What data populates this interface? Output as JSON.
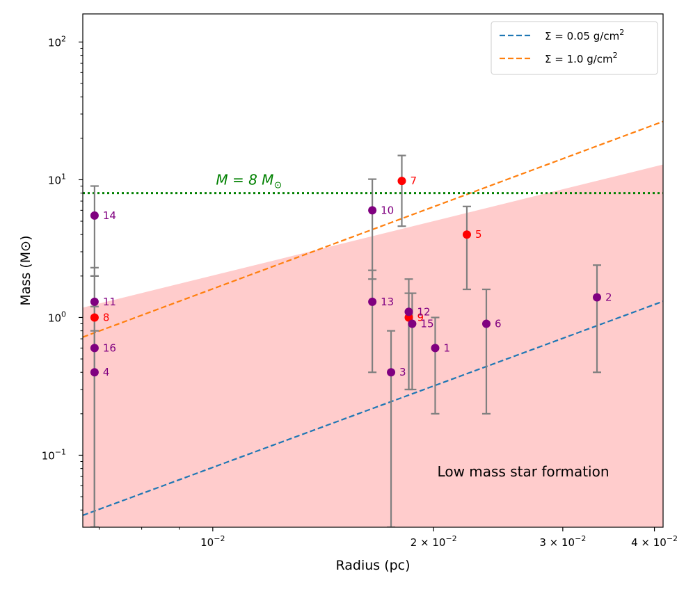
{
  "chart_data": {
    "type": "scatter",
    "xlabel": "Radius (pc)",
    "ylabel": "Mass (M⊙)",
    "x_scale": "log",
    "y_scale": "log",
    "xlim": [
      0.00665,
      0.0411
    ],
    "ylim": [
      0.03,
      160
    ],
    "x_ticks": [
      {
        "value": 0.01,
        "base": "10",
        "exp": "−2"
      },
      {
        "value": 0.02,
        "base": "2 × 10",
        "exp": "−2"
      },
      {
        "value": 0.03,
        "base": "3 × 10",
        "exp": "−2"
      },
      {
        "value": 0.04,
        "base": "4 × 10",
        "exp": "−2"
      }
    ],
    "y_ticks": [
      {
        "value": 0.1,
        "base": "10",
        "exp": "−1"
      },
      {
        "value": 1,
        "base": "10",
        "exp": "0"
      },
      {
        "value": 10,
        "base": "10",
        "exp": "1"
      },
      {
        "value": 100,
        "base": "10",
        "exp": "2"
      }
    ],
    "points": [
      {
        "label": "1",
        "radius": 0.0201,
        "mass": 0.6,
        "err_low": 0.2,
        "err_high": 1.0,
        "color": "#800080"
      },
      {
        "label": "2",
        "radius": 0.0334,
        "mass": 1.4,
        "err_low": 0.4,
        "err_high": 2.4,
        "color": "#800080"
      },
      {
        "label": "3",
        "radius": 0.0175,
        "mass": 0.4,
        "err_low": 0.03,
        "err_high": 0.8,
        "color": "#800080"
      },
      {
        "label": "4",
        "radius": 0.0069,
        "mass": 0.4,
        "err_low": 0.03,
        "err_high": 0.8,
        "color": "#800080"
      },
      {
        "label": "5",
        "radius": 0.0222,
        "mass": 4.0,
        "err_low": 1.6,
        "err_high": 6.4,
        "color": "#ff0000"
      },
      {
        "label": "6",
        "radius": 0.0236,
        "mass": 0.9,
        "err_low": 0.2,
        "err_high": 1.6,
        "color": "#800080"
      },
      {
        "label": "7",
        "radius": 0.0181,
        "mass": 9.8,
        "err_low": 4.6,
        "err_high": 15.0,
        "color": "#ff0000"
      },
      {
        "label": "8",
        "radius": 0.0069,
        "mass": 1.0,
        "err_low": 0.03,
        "err_high": 2.0,
        "color": "#ff0000"
      },
      {
        "label": "9",
        "radius": 0.0185,
        "mass": 1.0,
        "err_low": 0.3,
        "err_high": 1.5,
        "color": "#ff0000"
      },
      {
        "label": "10",
        "radius": 0.0165,
        "mass": 6.0,
        "err_low": 1.9,
        "err_high": 10.1,
        "color": "#800080"
      },
      {
        "label": "11",
        "radius": 0.0069,
        "mass": 1.3,
        "err_low": 0.03,
        "err_high": 2.3,
        "color": "#800080"
      },
      {
        "label": "12",
        "radius": 0.0185,
        "mass": 1.1,
        "err_low": 0.3,
        "err_high": 1.9,
        "color": "#800080"
      },
      {
        "label": "13",
        "radius": 0.0165,
        "mass": 1.3,
        "err_low": 0.4,
        "err_high": 2.2,
        "color": "#800080"
      },
      {
        "label": "14",
        "radius": 0.0069,
        "mass": 5.5,
        "err_low": 2.0,
        "err_high": 9.0,
        "color": "#800080"
      },
      {
        "label": "15",
        "radius": 0.0187,
        "mass": 0.9,
        "err_low": 0.3,
        "err_high": 1.5,
        "color": "#800080"
      },
      {
        "label": "16",
        "radius": 0.0069,
        "mass": 0.6,
        "err_low": 0.03,
        "err_high": 1.2,
        "color": "#800080"
      }
    ],
    "lines": [
      {
        "name": "Σ = 0.05 g/cm",
        "name_sup": "2",
        "color": "#1f77b4",
        "style": "dashed",
        "points": [
          [
            0.00665,
            0.0366
          ],
          [
            0.0411,
            1.31
          ]
        ]
      },
      {
        "name": "Σ = 1.0 g/cm",
        "name_sup": "2",
        "color": "#ff7f0e",
        "style": "dashed",
        "points": [
          [
            0.00665,
            0.72
          ],
          [
            0.0411,
            26.5
          ]
        ]
      }
    ],
    "threshold": {
      "value": 8,
      "color": "#008000",
      "style": "dotted",
      "label": "M = 8 M",
      "label_sub": "⊙",
      "label_x": 0.0101
    },
    "shaded_region": {
      "color": "#ffcccc",
      "upper": [
        [
          0.00665,
          1.18
        ],
        [
          0.0411,
          12.9
        ]
      ]
    },
    "annotation": {
      "text": "Low mass star formation",
      "x": 0.0265,
      "y": 0.07
    },
    "legend": {
      "position": "top-right"
    },
    "grid": false
  }
}
